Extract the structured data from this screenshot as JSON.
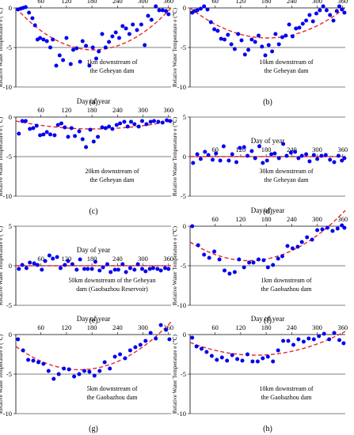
{
  "chart_data": [
    {
      "label": "(a)",
      "type": "scatter",
      "xlabel": "Day of year",
      "ylabel": "Relative Water Temperature e (℃)",
      "annotation": [
        "1km downstream of",
        "the Geheyan dam"
      ],
      "xlim": [
        1,
        366
      ],
      "ylim": [
        -10,
        0
      ],
      "xticks": [
        60,
        120,
        180,
        240,
        300,
        360
      ],
      "yticks": [
        0,
        -5,
        -10
      ],
      "series": [
        {
          "kind": "points",
          "color": "#0000ee",
          "x": [
            6,
            12,
            18,
            24,
            32,
            40,
            46,
            52,
            58,
            66,
            74,
            82,
            88,
            96,
            104,
            112,
            120,
            130,
            136,
            144,
            152,
            158,
            166,
            174,
            182,
            190,
            196,
            204,
            212,
            220,
            228,
            236,
            244,
            252,
            260,
            268,
            276,
            286,
            296,
            304,
            312,
            320,
            330,
            338,
            346,
            354,
            360
          ],
          "y": [
            -0.2,
            -0.1,
            0,
            0.1,
            -0.6,
            -1.3,
            -2.2,
            -4.0,
            -3.8,
            -4.0,
            -4.2,
            -5.0,
            -4.0,
            -7.3,
            -6.0,
            -6.6,
            -3.8,
            -7.1,
            -5.3,
            -5.1,
            -6.8,
            -4.2,
            -4.8,
            -7.3,
            -5.0,
            -6.4,
            -5.5,
            -3.3,
            -5.0,
            -4.3,
            -3.6,
            -3.1,
            -3.8,
            -2.3,
            -2.6,
            -3.3,
            -2.1,
            -2.8,
            -2.1,
            -4.7,
            -1.0,
            -1.5,
            0.2,
            -0.3,
            -0.3,
            -0.4,
            -0.8
          ]
        },
        {
          "kind": "trend",
          "color": "#e8262a",
          "x": [
            1,
            180,
            366
          ],
          "y": [
            0,
            -5.3,
            0
          ]
        }
      ]
    },
    {
      "label": "(b)",
      "type": "scatter",
      "xlabel": "Day of year",
      "ylabel": "Relative Water Temperature e (℃)",
      "annotation": [
        "10km downstream of",
        "the Geheyan dam"
      ],
      "xlim": [
        1,
        366
      ],
      "ylim": [
        -10,
        0
      ],
      "xticks": [
        60,
        120,
        180,
        240,
        300,
        360
      ],
      "yticks": [
        0,
        -5,
        -10
      ],
      "series": [
        {
          "kind": "points",
          "color": "#0000ee",
          "x": [
            6,
            12,
            18,
            26,
            34,
            42,
            50,
            58,
            66,
            74,
            82,
            90,
            98,
            106,
            114,
            122,
            130,
            138,
            146,
            154,
            162,
            170,
            178,
            186,
            194,
            202,
            210,
            218,
            226,
            234,
            242,
            250,
            258,
            266,
            274,
            282,
            290,
            298,
            306,
            314,
            322,
            330,
            338,
            346,
            352,
            358,
            364
          ],
          "y": [
            -0.6,
            -0.4,
            -0.3,
            -0.1,
            0.2,
            -0.2,
            -1.8,
            -2.7,
            -2.9,
            -3.9,
            -4.0,
            -3.4,
            -4.6,
            -5.2,
            -3.3,
            -4.1,
            -5.9,
            -5.3,
            -4.0,
            -4.3,
            -3.5,
            -4.9,
            -6.0,
            -4.7,
            -5.5,
            -3.3,
            -4.6,
            -3.7,
            -3.5,
            -2.1,
            -3.6,
            -2.6,
            -2.5,
            -2.0,
            -1.6,
            -0.9,
            -1.7,
            -0.7,
            -0.3,
            0.2,
            -0.3,
            -0.9,
            -1.6,
            -0.4,
            0.2,
            -0.2,
            -0.6
          ]
        },
        {
          "kind": "trend",
          "color": "#e8262a",
          "x": [
            1,
            180,
            366
          ],
          "y": [
            0,
            -3.8,
            0
          ]
        }
      ]
    },
    {
      "label": "(c)",
      "type": "scatter",
      "xlabel": "Day of year",
      "ylabel": "Relative Water Temperature e (℃)",
      "annotation": [
        "20km downstream of",
        "the Geheyan dam"
      ],
      "xlim": [
        1,
        366
      ],
      "ylim": [
        -10,
        0
      ],
      "xticks": [
        60,
        120,
        180,
        240,
        300,
        360
      ],
      "yticks": [
        0,
        -5,
        -10
      ],
      "series": [
        {
          "kind": "points",
          "color": "#0000ee",
          "x": [
            8,
            16,
            24,
            34,
            42,
            50,
            58,
            66,
            74,
            82,
            92,
            100,
            108,
            116,
            124,
            132,
            140,
            150,
            158,
            166,
            176,
            184,
            194,
            204,
            212,
            220,
            228,
            238,
            246,
            256,
            264,
            272,
            280,
            290,
            298,
            308,
            318,
            326,
            336,
            346,
            356,
            364
          ],
          "y": [
            -2.1,
            -0.5,
            -0.5,
            -1.5,
            -1.4,
            -1.1,
            -2.3,
            -2.2,
            -1.9,
            -2.2,
            -2.3,
            -1.0,
            -0.8,
            -1.3,
            -2.5,
            -1.4,
            -2.4,
            -1.8,
            -2.8,
            -3.8,
            -1.6,
            -3.1,
            -2.5,
            -1.3,
            -1.4,
            -1.2,
            -1.5,
            -1.0,
            -0.8,
            -0.6,
            -1.2,
            -0.6,
            -0.9,
            -1.2,
            -0.5,
            -0.9,
            -0.6,
            -0.5,
            -0.6,
            -0.7,
            -0.4,
            -0.5
          ]
        },
        {
          "kind": "trend",
          "color": "#e8262a",
          "x": [
            1,
            180,
            366
          ],
          "y": [
            -0.5,
            -1.5,
            -0.5
          ]
        }
      ]
    },
    {
      "label": "(d)",
      "type": "scatter",
      "xlabel": "Day of year",
      "ylabel": "Relative Water Temperature e (℃)",
      "annotation": [
        "30km downstream of",
        "the Geheyan dam"
      ],
      "xlim": [
        1,
        366
      ],
      "ylim": [
        -5,
        5
      ],
      "xticks": [
        60,
        120,
        180,
        240,
        300,
        360
      ],
      "yticks": [
        5,
        0,
        -5
      ],
      "series": [
        {
          "kind": "points",
          "color": "#0000ee",
          "x": [
            8,
            18,
            26,
            36,
            44,
            54,
            62,
            72,
            80,
            92,
            100,
            110,
            118,
            128,
            136,
            146,
            154,
            164,
            172,
            182,
            192,
            200,
            210,
            220,
            228,
            238,
            248,
            256,
            264,
            274,
            282,
            292,
            300,
            310,
            320,
            330,
            340,
            350,
            358,
            364
          ],
          "y": [
            -0.8,
            0.3,
            -0.3,
            0.6,
            0.2,
            -0.4,
            0.4,
            -0.5,
            1.3,
            -0.5,
            0.3,
            -0.7,
            1.1,
            1.2,
            0.1,
            0.7,
            -0.2,
            1.3,
            -0.8,
            -0.5,
            0.3,
            0.4,
            -0.2,
            1.6,
            0.1,
            0.5,
            0.6,
            -0.2,
            0.1,
            0.3,
            -0.6,
            0.2,
            -0.3,
            0.1,
            0.2,
            -0.4,
            -0.7,
            0.1,
            -0.5,
            -0.2
          ]
        },
        {
          "kind": "trend",
          "color": "#e8262a",
          "x": [
            1,
            366
          ],
          "y": [
            0,
            0
          ]
        }
      ]
    },
    {
      "label": "(e)",
      "type": "scatter",
      "xlabel": "Day of year",
      "ylabel": "Relative Water Temperature e (℃)",
      "annotation": [
        "50km downstream of the Geheyan",
        "dam (Gaobazhou Reservoir)"
      ],
      "xlim": [
        1,
        366
      ],
      "ylim": [
        -5,
        5
      ],
      "xticks": [
        60,
        120,
        180,
        240,
        300,
        360
      ],
      "yticks": [
        5,
        0,
        -5
      ],
      "series": [
        {
          "kind": "points",
          "color": "#0000ee",
          "x": [
            8,
            16,
            26,
            34,
            44,
            52,
            62,
            70,
            80,
            88,
            98,
            106,
            116,
            124,
            134,
            144,
            152,
            162,
            170,
            180,
            188,
            198,
            206,
            216,
            224,
            234,
            242,
            252,
            260,
            270,
            280,
            288,
            298,
            306,
            316,
            324,
            334,
            342,
            352,
            360
          ],
          "y": [
            -0.4,
            0.1,
            -0.3,
            0.4,
            0.3,
            0.1,
            -0.5,
            0.6,
            1.3,
            0.9,
            1.1,
            -0.3,
            0.1,
            0.6,
            0.2,
            -0.5,
            0.8,
            -0.4,
            -0.4,
            -0.4,
            0.5,
            -0.6,
            -0.2,
            0.2,
            -0.8,
            -0.5,
            -0.5,
            0.2,
            -0.8,
            -0.3,
            -0.5,
            0.2,
            -0.4,
            -0.7,
            -0.4,
            -0.3,
            -0.4,
            -0.6,
            -0.3,
            -0.4
          ]
        },
        {
          "kind": "trend",
          "color": "#e8262a",
          "x": [
            1,
            366
          ],
          "y": [
            0,
            0
          ]
        }
      ]
    },
    {
      "label": "(f)",
      "type": "scatter",
      "xlabel": "Day of year",
      "ylabel": "Relative Water Temperature e (℃)",
      "annotation": [
        "1km downstream of",
        "the Gaobazhou dam"
      ],
      "xlim": [
        1,
        366
      ],
      "ylim": [
        -10,
        0
      ],
      "xticks": [
        60,
        120,
        180,
        240,
        300,
        360
      ],
      "yticks": [
        0,
        -5,
        -10
      ],
      "series": [
        {
          "kind": "points",
          "color": "#0000ee",
          "x": [
            6,
            20,
            34,
            46,
            58,
            70,
            82,
            94,
            106,
            116,
            128,
            140,
            150,
            162,
            174,
            184,
            196,
            208,
            218,
            230,
            242,
            254,
            264,
            276,
            288,
            300,
            312,
            324,
            336,
            348,
            358,
            364
          ],
          "y": [
            0,
            -2.4,
            -3.6,
            -4.0,
            -3.2,
            -4.2,
            -5.6,
            -6.0,
            -5.8,
            -4.2,
            -5.2,
            -4.6,
            -4.6,
            -4.2,
            -4.3,
            -5.2,
            -4.9,
            -4.1,
            -3.8,
            -2.5,
            -2.8,
            -2.6,
            -2.0,
            -1.4,
            -1.7,
            -0.5,
            -0.4,
            -0.2,
            -0.6,
            -0.3,
            0.1,
            -0.2
          ]
        },
        {
          "kind": "trend",
          "color": "#e8262a",
          "x": [
            1,
            160,
            366
          ],
          "y": [
            -2.0,
            -4.3,
            2.0
          ]
        }
      ]
    },
    {
      "label": "(g)",
      "type": "scatter",
      "xlabel": "Day of year",
      "ylabel": "Relative Water Temperature e (℃)",
      "annotation": [
        "5km downstream of",
        "the Gaobazhou dam"
      ],
      "xlim": [
        1,
        366
      ],
      "ylim": [
        -10,
        0
      ],
      "xticks": [
        60,
        120,
        180,
        240,
        300,
        360
      ],
      "yticks": [
        0,
        -5,
        -10
      ],
      "series": [
        {
          "kind": "points",
          "color": "#0000ee",
          "x": [
            6,
            18,
            30,
            42,
            54,
            66,
            78,
            90,
            102,
            114,
            126,
            138,
            150,
            162,
            174,
            186,
            198,
            210,
            222,
            234,
            246,
            258,
            270,
            282,
            294,
            306,
            318,
            330,
            342,
            354,
            362
          ],
          "y": [
            -0.6,
            -2.0,
            -3.2,
            -3.3,
            -3.5,
            -3.7,
            -4.6,
            -5.6,
            -5.0,
            -4.3,
            -4.4,
            -5.3,
            -5.0,
            -4.6,
            -4.7,
            -5.2,
            -4.6,
            -3.5,
            -4.3,
            -2.8,
            -2.5,
            -3.0,
            -2.0,
            -1.6,
            -1.3,
            -0.8,
            0.2,
            -0.5,
            1.2,
            0.6,
            -0.6
          ]
        },
        {
          "kind": "trend",
          "color": "#e8262a",
          "x": [
            1,
            170,
            366
          ],
          "y": [
            -1.5,
            -4.4,
            1.6
          ]
        }
      ]
    },
    {
      "label": "(h)",
      "type": "scatter",
      "xlabel": "Day of year",
      "ylabel": "Relative Water Temperature e (℃)",
      "annotation": [
        "10km downstream of",
        "the Gaobazhou dam"
      ],
      "xlim": [
        1,
        366
      ],
      "ylim": [
        -10,
        0
      ],
      "xticks": [
        60,
        120,
        180,
        240,
        300,
        360
      ],
      "yticks": [
        0,
        -5,
        -10
      ],
      "series": [
        {
          "kind": "points",
          "color": "#0000ee",
          "x": [
            6,
            16,
            28,
            40,
            52,
            64,
            76,
            88,
            100,
            112,
            124,
            136,
            148,
            160,
            172,
            184,
            196,
            208,
            220,
            232,
            244,
            256,
            268,
            280,
            292,
            304,
            316,
            328,
            340,
            352,
            362
          ],
          "y": [
            -0.4,
            -1.5,
            -1.8,
            -2.2,
            -2.7,
            -3.2,
            -2.9,
            -3.3,
            -2.6,
            -3.1,
            -3.3,
            -2.5,
            -3.4,
            -3.4,
            -3.0,
            -2.8,
            -3.4,
            -2.0,
            -0.8,
            -0.8,
            -1.3,
            -0.6,
            -0.9,
            -0.5,
            -0.6,
            -0.2,
            0.1,
            -0.6,
            0.2,
            -0.7,
            -1.1
          ]
        },
        {
          "kind": "trend",
          "color": "#e8262a",
          "x": [
            1,
            165,
            366
          ],
          "y": [
            -1.0,
            -2.6,
            0.4
          ]
        }
      ]
    }
  ]
}
